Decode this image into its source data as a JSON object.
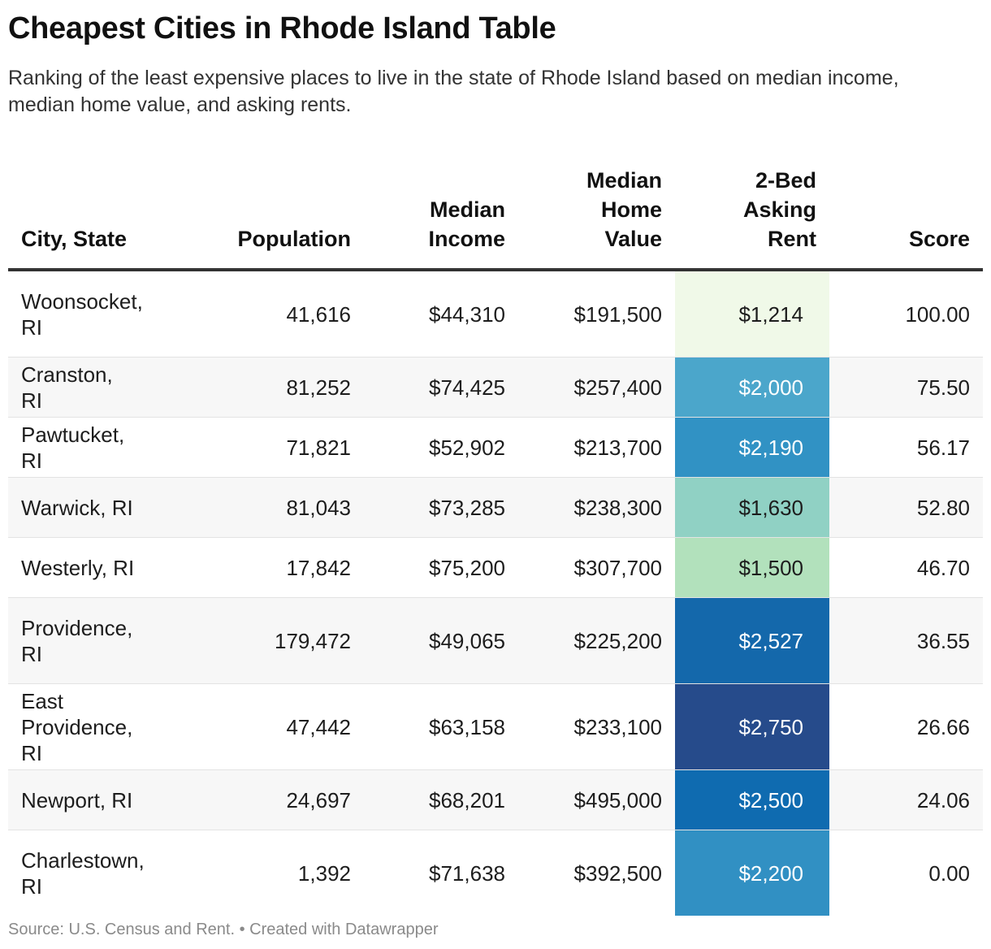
{
  "title": "Cheapest Cities in Rhode Island Table",
  "subtitle": "Ranking of the least expensive places to live in the state of Rhode Island based on median income, median home value, and asking rents.",
  "source": "Source: U.S. Census and Rent. • Created with Datawrapper",
  "chart_data": {
    "type": "table",
    "columns": [
      "City, State",
      "Population",
      "Median Income",
      "Median Home Value",
      "2-Bed Asking Rent",
      "Score"
    ],
    "rows": [
      {
        "city": "Woonsocket, RI",
        "population": "41,616",
        "income": "$44,310",
        "home_value": "$191,500",
        "rent": "$1,214",
        "score": "100.00",
        "rent_bg": "#f0f9e8",
        "rent_fg": "#1d1d1d"
      },
      {
        "city": "Cranston, RI",
        "population": "81,252",
        "income": "$74,425",
        "home_value": "$257,400",
        "rent": "$2,000",
        "score": "75.50",
        "rent_bg": "#4ba6cb",
        "rent_fg": "#ffffff"
      },
      {
        "city": "Pawtucket, RI",
        "population": "71,821",
        "income": "$52,902",
        "home_value": "$213,700",
        "rent": "$2,190",
        "score": "56.17",
        "rent_bg": "#3192c4",
        "rent_fg": "#ffffff"
      },
      {
        "city": "Warwick, RI",
        "population": "81,043",
        "income": "$73,285",
        "home_value": "$238,300",
        "rent": "$1,630",
        "score": "52.80",
        "rent_bg": "#90d1c4",
        "rent_fg": "#1d1d1d"
      },
      {
        "city": "Westerly, RI",
        "population": "17,842",
        "income": "$75,200",
        "home_value": "$307,700",
        "rent": "$1,500",
        "score": "46.70",
        "rent_bg": "#b2e1bc",
        "rent_fg": "#1d1d1d"
      },
      {
        "city": "Providence, RI",
        "population": "179,472",
        "income": "$49,065",
        "home_value": "$225,200",
        "rent": "$2,527",
        "score": "36.55",
        "rent_bg": "#1468ab",
        "rent_fg": "#ffffff"
      },
      {
        "city": "East Providence, RI",
        "population": "47,442",
        "income": "$63,158",
        "home_value": "$233,100",
        "rent": "$2,750",
        "score": "26.66",
        "rent_bg": "#264b8b",
        "rent_fg": "#ffffff"
      },
      {
        "city": "Newport, RI",
        "population": "24,697",
        "income": "$68,201",
        "home_value": "$495,000",
        "rent": "$2,500",
        "score": "24.06",
        "rent_bg": "#0f6bb0",
        "rent_fg": "#ffffff"
      },
      {
        "city": "Charlestown, RI",
        "population": "1,392",
        "income": "$71,638",
        "home_value": "$392,500",
        "rent": "$2,200",
        "score": "0.00",
        "rent_bg": "#3190c3",
        "rent_fg": "#ffffff"
      }
    ]
  }
}
